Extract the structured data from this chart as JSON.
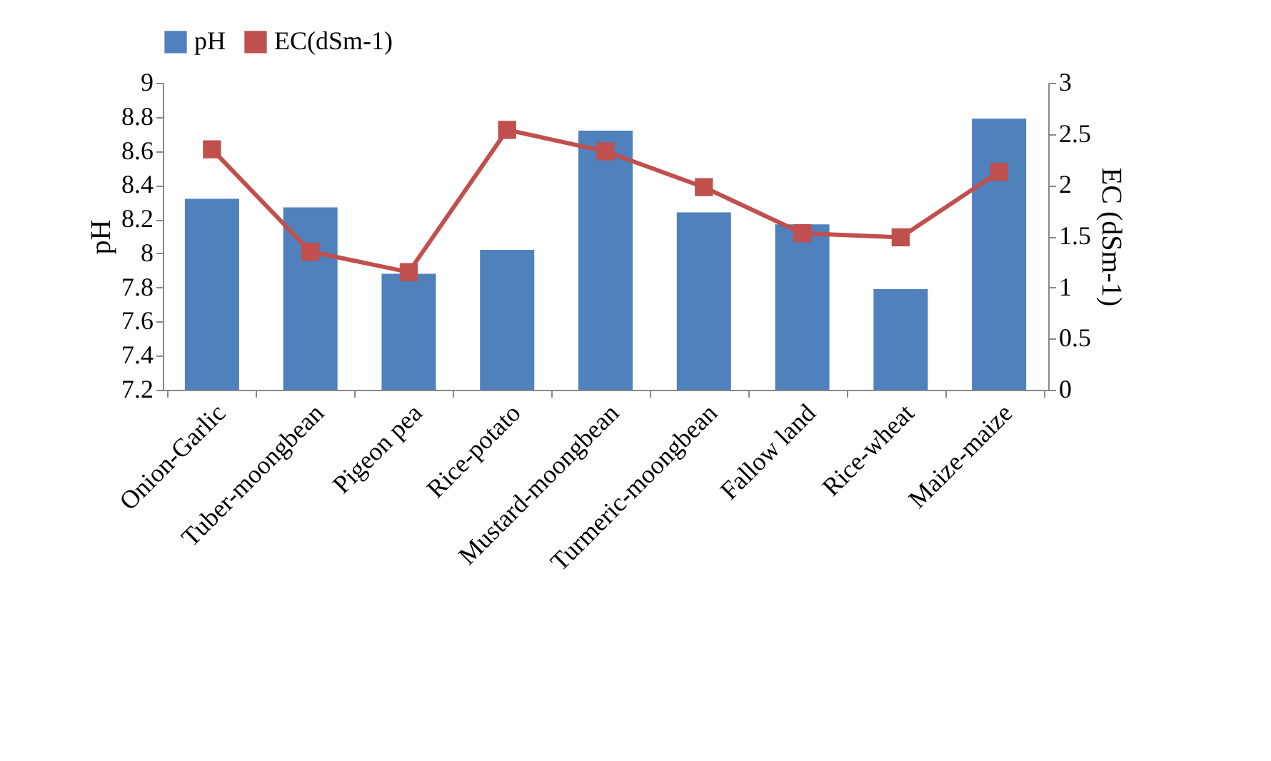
{
  "chart_data": {
    "type": "bar",
    "categories": [
      "Onion-Garlic",
      "Tuber-moongbean",
      "Pigeon pea",
      "Rice-potato",
      "Mustard-moongbean",
      "Turmeric-moongbean",
      "Fallow land",
      "Rice-wheat",
      "Maize-maize"
    ],
    "ylabel": "pH",
    "y2label": "EC (dSm-1)",
    "series": [
      {
        "name": "pH",
        "color": "#4f81bd",
        "values": [
          8.32,
          8.27,
          7.88,
          8.02,
          8.72,
          8.24,
          8.17,
          7.79,
          8.79
        ]
      },
      {
        "name": "EC(dSm-1)",
        "type": "line",
        "axis": "y2",
        "color": "#c0504d",
        "marker": "square",
        "values": [
          2.35,
          1.35,
          1.15,
          2.54,
          2.33,
          1.98,
          1.53,
          1.49,
          2.13
        ]
      }
    ],
    "ylim": [
      7.2,
      9
    ],
    "yticks": [
      7.2,
      7.4,
      7.6,
      7.8,
      8,
      8.2,
      8.4,
      8.6,
      8.8,
      9
    ],
    "y2lim": [
      0,
      3
    ],
    "y2ticks": [
      0,
      0.5,
      1,
      1.5,
      2,
      2.5,
      3
    ],
    "legend": "top",
    "grid": false
  }
}
